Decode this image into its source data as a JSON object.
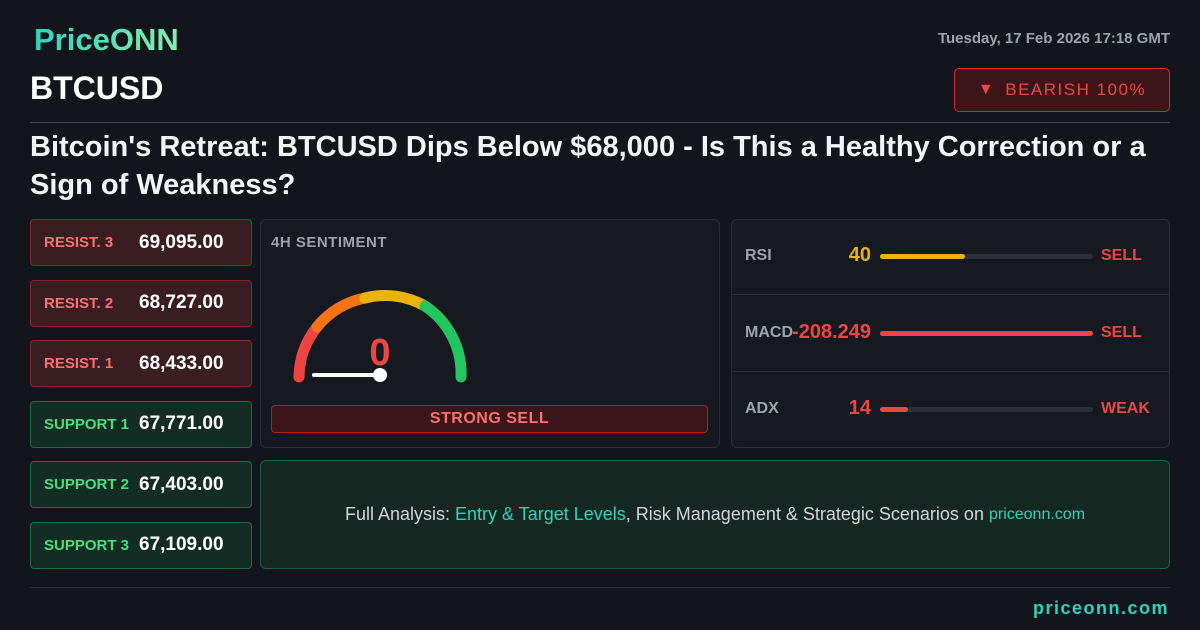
{
  "brand": "PriceONN",
  "date": "Tuesday, 17 Feb 2026 17:18 GMT",
  "symbol": "BTCUSD",
  "badge": "BEARISH 100%",
  "headline": "Bitcoin's Retreat: BTCUSD Dips Below $68,000 - Is This a Healthy Correction or a Sign of Weakness?",
  "levels": [
    {
      "label": "RESIST. 3",
      "value": "69,095.00",
      "kind": "resist"
    },
    {
      "label": "RESIST. 2",
      "value": "68,727.00",
      "kind": "resist"
    },
    {
      "label": "RESIST. 1",
      "value": "68,433.00",
      "kind": "resist"
    },
    {
      "label": "SUPPORT 1",
      "value": "67,771.00",
      "kind": "support"
    },
    {
      "label": "SUPPORT 2",
      "value": "67,403.00",
      "kind": "support"
    },
    {
      "label": "SUPPORT 3",
      "value": "67,109.00",
      "kind": "support"
    }
  ],
  "sentiment": {
    "title": "4H SENTIMENT",
    "value": "0",
    "verdict": "STRONG SELL"
  },
  "indicators": [
    {
      "name": "RSI",
      "value": "40",
      "signal": "SELL",
      "color": "#eab308"
    },
    {
      "name": "MACD",
      "value": "-208.249",
      "signal": "SELL",
      "color": "#ef4444"
    },
    {
      "name": "ADX",
      "value": "14",
      "signal": "WEAK",
      "color": "#ef4444"
    }
  ],
  "footer": {
    "prefix": "Full Analysis: ",
    "highlight": "Entry & Target Levels",
    "middle": ", Risk Management & Strategic Scenarios on ",
    "site": "priceonn.com"
  },
  "site": "priceonn.com"
}
